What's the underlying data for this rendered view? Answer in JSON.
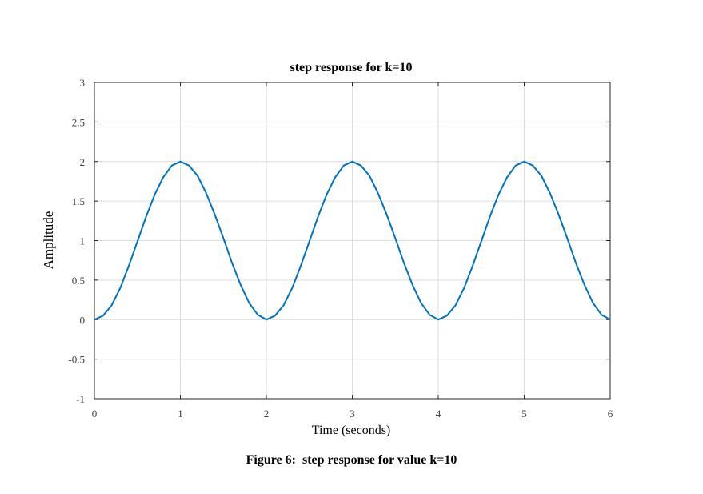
{
  "caption": "Figure 6:  step response for value k=10",
  "chart_data": {
    "type": "line",
    "title": "step response for k=10",
    "xlabel": "Time (seconds)",
    "ylabel": "Amplitude",
    "xlim": [
      0,
      6
    ],
    "ylim": [
      -1,
      3
    ],
    "xticks": [
      0,
      1,
      2,
      3,
      4,
      5,
      6
    ],
    "yticks": [
      3,
      2.5,
      2,
      1.5,
      1,
      0.5,
      0,
      -0.5,
      -1
    ],
    "xtick_labels": [
      "0",
      "1",
      "2",
      "3",
      "4",
      "5",
      "6"
    ],
    "ytick_labels": [
      "3",
      "2.5",
      "2",
      "1.5",
      "1",
      "0.5",
      "0",
      "-0.5",
      "-1"
    ],
    "grid": true,
    "line_color": "#0072bd",
    "series": [
      {
        "x": [
          0,
          0.1,
          0.2,
          0.3,
          0.4,
          0.5,
          0.6,
          0.7,
          0.8,
          0.9,
          1.0,
          1.1,
          1.2,
          1.3,
          1.4,
          1.5,
          1.6,
          1.7,
          1.8,
          1.9,
          2.0,
          2.1,
          2.2,
          2.3,
          2.4,
          2.5,
          2.6,
          2.7,
          2.8,
          2.9,
          3.0,
          3.1,
          3.2,
          3.3,
          3.4,
          3.5,
          3.6,
          3.7,
          3.8,
          3.9,
          4.0,
          4.1,
          4.2,
          4.3,
          4.4,
          4.5,
          4.6,
          4.7,
          4.8,
          4.9,
          5.0,
          5.1,
          5.2,
          5.3,
          5.4,
          5.5,
          5.6,
          5.7,
          5.8,
          5.9,
          6.0
        ],
        "y": [
          0,
          0.05,
          0.18,
          0.4,
          0.68,
          0.99,
          1.3,
          1.58,
          1.8,
          1.95,
          2.0,
          1.95,
          1.82,
          1.6,
          1.33,
          1.03,
          0.72,
          0.44,
          0.21,
          0.06,
          0,
          0.05,
          0.18,
          0.4,
          0.68,
          0.99,
          1.3,
          1.58,
          1.8,
          1.95,
          2.0,
          1.95,
          1.82,
          1.6,
          1.33,
          1.03,
          0.72,
          0.44,
          0.21,
          0.06,
          0,
          0.05,
          0.18,
          0.4,
          0.68,
          0.99,
          1.3,
          1.58,
          1.8,
          1.95,
          2.0,
          1.95,
          1.82,
          1.6,
          1.33,
          1.03,
          0.72,
          0.44,
          0.21,
          0.06,
          0
        ]
      }
    ]
  }
}
